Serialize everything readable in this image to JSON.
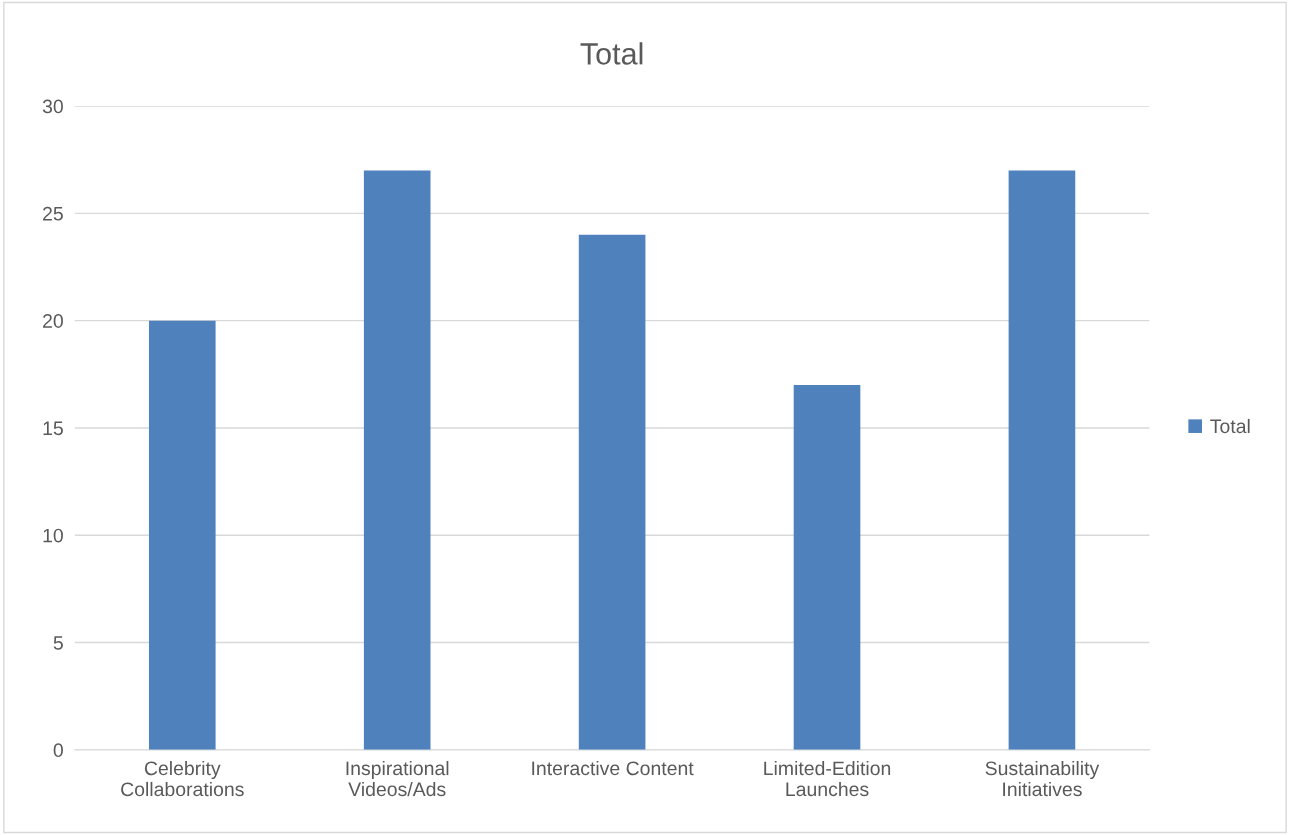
{
  "chart_data": {
    "type": "bar",
    "title": "Total",
    "categories": [
      "Celebrity\nCollaborations",
      "Inspirational\nVideos/Ads",
      "Interactive Content",
      "Limited-Edition\nLaunches",
      "Sustainability\nInitiatives"
    ],
    "series": [
      {
        "name": "Total",
        "color": "#4f81bd",
        "values": [
          20,
          27,
          24,
          17,
          27
        ]
      }
    ],
    "ylim": [
      0,
      30
    ],
    "yticks": [
      0,
      5,
      10,
      15,
      20,
      25,
      30
    ],
    "grid": "y",
    "legend": "right"
  }
}
